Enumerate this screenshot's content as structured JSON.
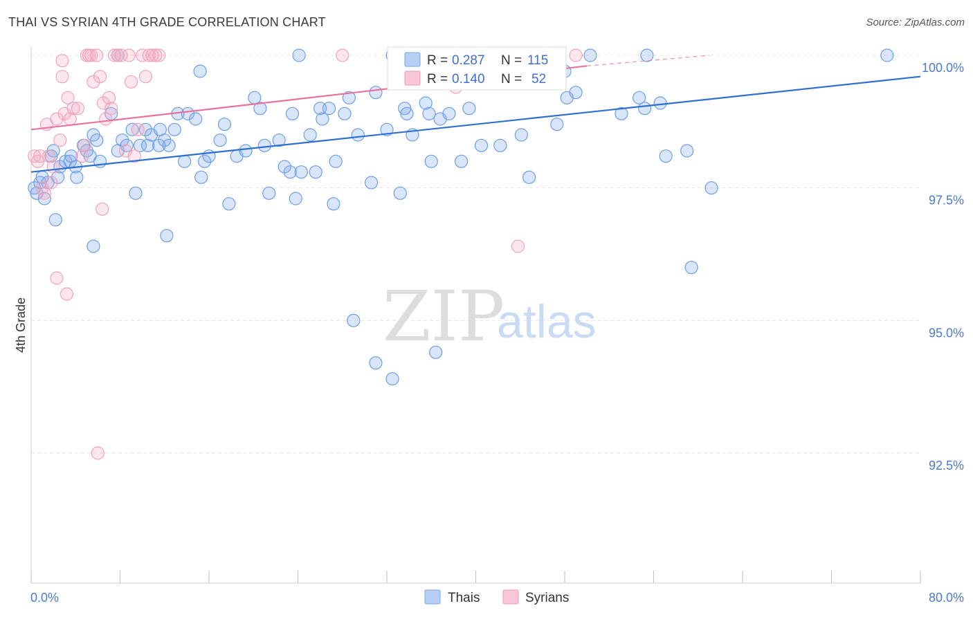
{
  "title": "THAI VS SYRIAN 4TH GRADE CORRELATION CHART",
  "source": "Source: ZipAtlas.com",
  "watermark": {
    "zip": "ZIP",
    "atlas": "atlas"
  },
  "chart_data": {
    "type": "scatter",
    "ylabel": "4th Grade",
    "xlabel": "",
    "xlim": [
      0,
      80
    ],
    "ylim": [
      90.0,
      100.5
    ],
    "x_tick_labels": [
      "0.0%",
      "80.0%"
    ],
    "y_ticks": [
      92.5,
      95.0,
      97.5,
      100.0
    ],
    "y_tick_labels": [
      "92.5%",
      "95.0%",
      "97.5%",
      "100.0%"
    ],
    "grid": true,
    "colors": {
      "thais": "#6c9ee6",
      "syrians": "#f0a3bb",
      "thais_line": "#2f6fd0",
      "syrians_line": "#e8729a"
    },
    "legend": {
      "entries": [
        {
          "r_label": "R =",
          "r_value": "0.287",
          "n_label": "N =",
          "n_value": "115"
        },
        {
          "r_label": "R =",
          "r_value": "0.140",
          "n_label": "N =",
          "n_value": "52"
        }
      ]
    },
    "bottom_legend": [
      "Thais",
      "Syrians"
    ],
    "series": [
      {
        "name": "Thais",
        "trend": {
          "x0": 0,
          "y0": 97.8,
          "x1": 80,
          "y1": 99.6
        },
        "points": [
          [
            0.3,
            97.5
          ],
          [
            0.5,
            97.4
          ],
          [
            0.8,
            97.6
          ],
          [
            1.0,
            97.7
          ],
          [
            1.2,
            97.3
          ],
          [
            1.5,
            97.6
          ],
          [
            1.8,
            98.1
          ],
          [
            2.0,
            98.2
          ],
          [
            2.4,
            97.7
          ],
          [
            2.6,
            97.9
          ],
          [
            3.1,
            98.0
          ],
          [
            3.5,
            98.0
          ],
          [
            3.6,
            98.1
          ],
          [
            4.0,
            97.9
          ],
          [
            4.1,
            97.7
          ],
          [
            4.7,
            98.3
          ],
          [
            5.0,
            98.2
          ],
          [
            5.3,
            98.1
          ],
          [
            5.6,
            98.5
          ],
          [
            5.9,
            98.4
          ],
          [
            6.2,
            98.0
          ],
          [
            7.2,
            98.9
          ],
          [
            7.8,
            98.2
          ],
          [
            8.2,
            98.4
          ],
          [
            8.6,
            98.3
          ],
          [
            9.1,
            98.6
          ],
          [
            9.4,
            97.4
          ],
          [
            9.8,
            98.3
          ],
          [
            10.3,
            98.6
          ],
          [
            10.5,
            98.3
          ],
          [
            10.8,
            98.5
          ],
          [
            11.5,
            98.3
          ],
          [
            11.6,
            98.6
          ],
          [
            12.0,
            98.4
          ],
          [
            12.4,
            98.3
          ],
          [
            12.9,
            98.6
          ],
          [
            13.2,
            98.9
          ],
          [
            13.8,
            98.0
          ],
          [
            14.1,
            98.9
          ],
          [
            14.8,
            98.8
          ],
          [
            15.3,
            97.7
          ],
          [
            15.6,
            98.0
          ],
          [
            16.0,
            98.1
          ],
          [
            17.0,
            98.4
          ],
          [
            17.4,
            98.7
          ],
          [
            17.8,
            97.2
          ],
          [
            18.5,
            98.1
          ],
          [
            19.3,
            98.2
          ],
          [
            20.1,
            99.2
          ],
          [
            20.6,
            99.0
          ],
          [
            21.0,
            98.3
          ],
          [
            21.4,
            97.4
          ],
          [
            22.3,
            98.4
          ],
          [
            22.8,
            97.9
          ],
          [
            23.3,
            97.8
          ],
          [
            23.5,
            98.9
          ],
          [
            23.8,
            97.3
          ],
          [
            24.3,
            97.8
          ],
          [
            25.1,
            98.5
          ],
          [
            25.6,
            97.8
          ],
          [
            26.0,
            99.0
          ],
          [
            26.2,
            98.8
          ],
          [
            26.8,
            99.0
          ],
          [
            27.2,
            97.2
          ],
          [
            27.4,
            98.0
          ],
          [
            28.2,
            98.9
          ],
          [
            28.6,
            99.2
          ],
          [
            29.4,
            98.5
          ],
          [
            30.6,
            97.6
          ],
          [
            31.0,
            99.3
          ],
          [
            32.0,
            98.6
          ],
          [
            33.2,
            97.4
          ],
          [
            33.6,
            99.0
          ],
          [
            33.8,
            98.9
          ],
          [
            34.3,
            98.5
          ],
          [
            35.5,
            99.1
          ],
          [
            35.8,
            98.9
          ],
          [
            36.0,
            98.0
          ],
          [
            36.8,
            98.8
          ],
          [
            37.6,
            98.9
          ],
          [
            38.7,
            98.0
          ],
          [
            39.4,
            99.0
          ],
          [
            40.5,
            98.3
          ],
          [
            42.2,
            98.3
          ],
          [
            44.1,
            98.5
          ],
          [
            44.8,
            97.7
          ],
          [
            47.3,
            98.7
          ],
          [
            48.2,
            99.2
          ],
          [
            49.0,
            99.3
          ],
          [
            53.1,
            98.9
          ],
          [
            54.7,
            99.2
          ],
          [
            55.2,
            99.0
          ],
          [
            56.6,
            99.1
          ],
          [
            57.1,
            98.1
          ],
          [
            59.0,
            98.2
          ],
          [
            59.4,
            96.0
          ],
          [
            61.2,
            97.5
          ],
          [
            77.0,
            100.0
          ],
          [
            29.0,
            95.0
          ],
          [
            31.0,
            94.2
          ],
          [
            32.5,
            93.9
          ],
          [
            36.4,
            94.4
          ],
          [
            12.2,
            96.6
          ],
          [
            5.6,
            96.4
          ],
          [
            2.2,
            96.9
          ],
          [
            7.8,
            100.0
          ],
          [
            15.2,
            99.7
          ],
          [
            24.1,
            100.0
          ],
          [
            32.5,
            100.0
          ],
          [
            38.0,
            100.0
          ],
          [
            39.0,
            99.5
          ],
          [
            47.2,
            99.7
          ],
          [
            48.0,
            99.7
          ],
          [
            50.3,
            100.0
          ],
          [
            55.4,
            100.0
          ]
        ]
      },
      {
        "name": "Syrians",
        "trend": {
          "x0": 0,
          "y0": 98.6,
          "x1": 50,
          "y1": 99.8
        },
        "trend_dashed": {
          "x0": 50,
          "y0": 99.8,
          "x1": 61,
          "y1": 100.0
        },
        "points": [
          [
            0.3,
            98.1
          ],
          [
            0.6,
            98.0
          ],
          [
            0.8,
            98.1
          ],
          [
            1.0,
            97.5
          ],
          [
            1.2,
            97.4
          ],
          [
            1.4,
            98.7
          ],
          [
            1.6,
            98.1
          ],
          [
            1.8,
            97.6
          ],
          [
            2.0,
            97.9
          ],
          [
            2.3,
            98.8
          ],
          [
            2.6,
            98.4
          ],
          [
            2.8,
            99.6
          ],
          [
            2.8,
            99.9
          ],
          [
            3.0,
            98.9
          ],
          [
            3.3,
            99.2
          ],
          [
            3.5,
            98.8
          ],
          [
            3.8,
            99.0
          ],
          [
            4.2,
            99.0
          ],
          [
            4.6,
            98.1
          ],
          [
            4.8,
            98.3
          ],
          [
            5.0,
            100.0
          ],
          [
            5.2,
            100.0
          ],
          [
            5.4,
            100.0
          ],
          [
            5.6,
            99.5
          ],
          [
            5.9,
            100.0
          ],
          [
            6.2,
            99.6
          ],
          [
            6.5,
            99.1
          ],
          [
            6.7,
            98.8
          ],
          [
            7.0,
            99.2
          ],
          [
            7.2,
            99.0
          ],
          [
            7.5,
            100.0
          ],
          [
            7.8,
            100.0
          ],
          [
            8.1,
            100.0
          ],
          [
            8.5,
            98.2
          ],
          [
            8.8,
            100.0
          ],
          [
            9.0,
            99.5
          ],
          [
            9.3,
            98.1
          ],
          [
            9.6,
            98.6
          ],
          [
            10.0,
            100.0
          ],
          [
            10.3,
            99.6
          ],
          [
            10.6,
            100.0
          ],
          [
            10.9,
            100.0
          ],
          [
            11.2,
            100.0
          ],
          [
            11.5,
            100.0
          ],
          [
            6.4,
            97.1
          ],
          [
            2.3,
            95.8
          ],
          [
            3.2,
            95.5
          ],
          [
            6.0,
            92.5
          ],
          [
            28.0,
            100.0
          ],
          [
            38.2,
            99.4
          ],
          [
            43.8,
            96.4
          ],
          [
            49.0,
            100.0
          ]
        ]
      }
    ]
  }
}
